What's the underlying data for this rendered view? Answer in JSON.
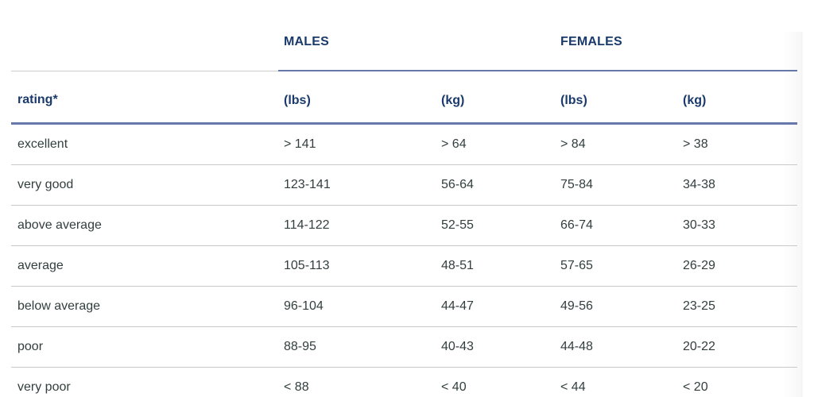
{
  "chart_data": {
    "type": "table",
    "title": "",
    "group_headers": [
      "",
      "MALES",
      "FEMALES"
    ],
    "column_headers": [
      "rating*",
      "(lbs)",
      "(kg)",
      "(lbs)",
      "(kg)"
    ],
    "rows": [
      [
        "excellent",
        "> 141",
        "> 64",
        "> 84",
        "> 38"
      ],
      [
        "very good",
        "123-141",
        "56-64",
        "75-84",
        "34-38"
      ],
      [
        "above average",
        "114-122",
        "52-55",
        "66-74",
        "30-33"
      ],
      [
        "average",
        "105-113",
        "48-51",
        "57-65",
        "26-29"
      ],
      [
        "below average",
        "96-104",
        "44-47",
        "49-56",
        "23-25"
      ],
      [
        "poor",
        "88-95",
        "40-43",
        "44-48",
        "20-22"
      ],
      [
        "very poor",
        "< 88",
        "< 40",
        "< 44",
        "< 20"
      ]
    ]
  },
  "colors": {
    "header_text": "#1a3a6b",
    "accent_line": "#6678aa",
    "body_text": "#333e3e",
    "row_divider": "#c9c9c9",
    "background": "#ffffff"
  }
}
